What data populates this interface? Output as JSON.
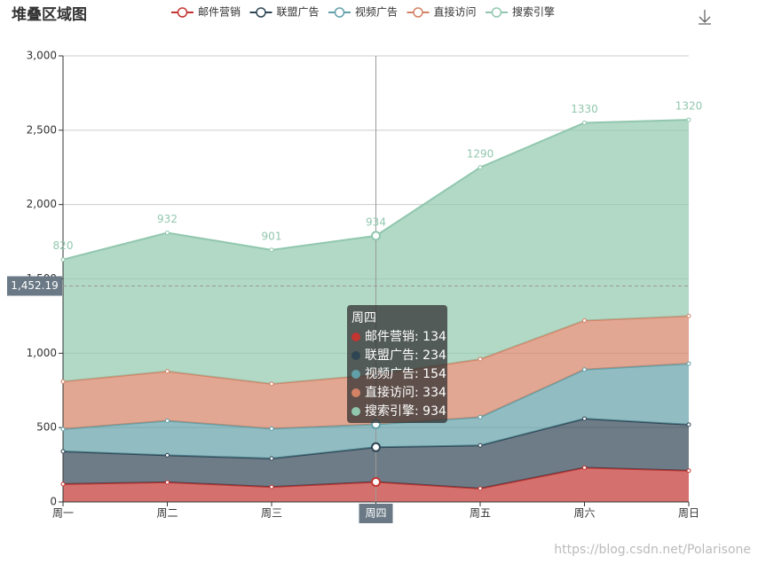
{
  "chart_data": {
    "type": "stacked-area",
    "title": "堆叠区域图",
    "categories": [
      "周一",
      "周二",
      "周三",
      "周四",
      "周五",
      "周六",
      "周日"
    ],
    "series": [
      {
        "name": "邮件营销",
        "color": "#c23531",
        "values": [
          120,
          132,
          101,
          134,
          90,
          230,
          210
        ]
      },
      {
        "name": "联盟广告",
        "color": "#2f4554",
        "values": [
          220,
          182,
          191,
          234,
          290,
          330,
          310
        ]
      },
      {
        "name": "视频广告",
        "color": "#61a0a8",
        "values": [
          150,
          232,
          201,
          154,
          190,
          330,
          410
        ]
      },
      {
        "name": "直接访问",
        "color": "#d48265",
        "values": [
          320,
          332,
          301,
          334,
          390,
          330,
          320
        ]
      },
      {
        "name": "搜索引擎",
        "color": "#91c7ae",
        "values": [
          820,
          932,
          901,
          934,
          1290,
          1330,
          1320
        ]
      }
    ],
    "ylim": [
      0,
      3000
    ],
    "yticks": [
      0,
      500,
      {
        "value": 1000,
        "label": "1,000"
      },
      {
        "value": 1500,
        "label": "1,500"
      },
      {
        "value": 2000,
        "label": "2,000"
      },
      {
        "value": 2500,
        "label": "2,500"
      },
      {
        "value": 3000,
        "label": "3,000"
      }
    ],
    "grid": true,
    "axis_pointer": {
      "value": 1452.19,
      "label": "1,452.19"
    },
    "watermark": "https://blog.csdn.net/Polarisone"
  }
}
